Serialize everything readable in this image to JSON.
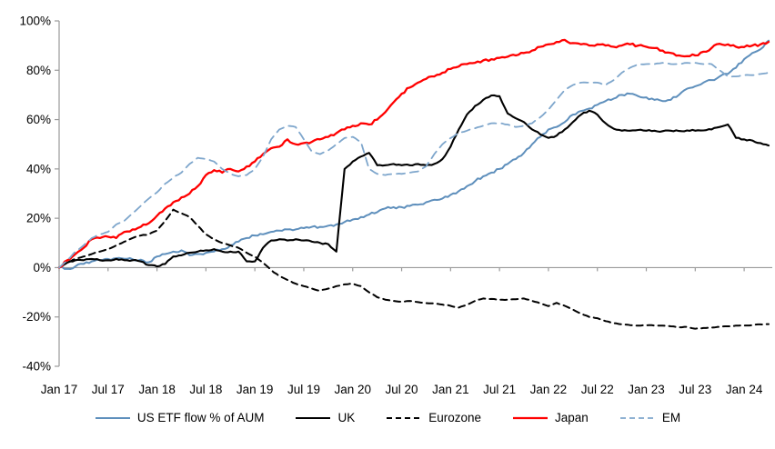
{
  "chart_data": {
    "type": "line",
    "title": "",
    "xlabel": "",
    "ylabel": "",
    "ylim": [
      -40,
      100
    ],
    "grid": false,
    "legend_position": "bottom",
    "x_unit": "months from Jan 2017 (monthly samples)",
    "x_tick_labels": [
      "Jan 17",
      "Jul 17",
      "Jan 18",
      "Jul 18",
      "Jan 19",
      "Jul 19",
      "Jan 20",
      "Jul 20",
      "Jan 21",
      "Jul 21",
      "Jan 22",
      "Jul 22",
      "Jan 23",
      "Jul 23",
      "Jan 24"
    ],
    "y_tick_labels": [
      "100%",
      "80%",
      "60%",
      "40%",
      "20%",
      "0%",
      "-20%",
      "-40%"
    ],
    "axis_color": "#9a9a9a",
    "series": [
      {
        "name": "US ETF flow % of AUM",
        "color": "#5e8fbc",
        "style": "solid",
        "values": [
          0,
          -0.5,
          0.5,
          1.5,
          2.5,
          3,
          3.5,
          3.8,
          3.6,
          3.4,
          3.2,
          2.2,
          4.5,
          5.5,
          6.5,
          7,
          5,
          5.5,
          6,
          6.5,
          7.5,
          9,
          10.5,
          12,
          13,
          13.5,
          14.5,
          15,
          15.5,
          15.5,
          16,
          16.5,
          16.5,
          17,
          17.5,
          18.5,
          19.5,
          20.5,
          21.5,
          22.5,
          24,
          24.5,
          24.5,
          25,
          25.5,
          26.5,
          27.5,
          28,
          29.5,
          31,
          33,
          35,
          37,
          38.5,
          40,
          42,
          44,
          46.5,
          50,
          53,
          56,
          57,
          59,
          62,
          63.5,
          64.5,
          66,
          67.5,
          68.5,
          70,
          70.5,
          69.5,
          69,
          68,
          67.5,
          68,
          70,
          72.5,
          73.5,
          75,
          76,
          77.5,
          78.5,
          81,
          84.5,
          87,
          88.5,
          92
        ]
      },
      {
        "name": "UK",
        "color": "#000000",
        "style": "solid",
        "values": [
          0,
          2,
          3,
          3,
          3.5,
          3,
          3,
          3.5,
          3,
          3,
          2.5,
          1,
          0.5,
          1.5,
          4.5,
          5,
          6,
          6.5,
          7,
          7.5,
          6.5,
          6.5,
          6.5,
          2.5,
          2.5,
          8,
          11,
          11.5,
          11,
          11.5,
          11,
          10.5,
          10,
          9.5,
          6.5,
          40,
          43,
          45,
          46.5,
          41.5,
          41.5,
          42,
          41.5,
          41.5,
          42,
          41.5,
          42,
          44,
          49,
          56,
          62,
          65.5,
          68,
          69.8,
          69.5,
          62.5,
          60.5,
          59,
          56,
          54,
          52.6,
          53.5,
          56,
          59,
          62,
          63.6,
          62,
          58.5,
          56.3,
          55.5,
          55.5,
          55.8,
          55.5,
          55.5,
          55.3,
          55.5,
          55.4,
          55.6,
          55.5,
          55.6,
          56,
          57,
          58,
          52.6,
          52,
          51.5,
          50.5,
          49.5
        ]
      },
      {
        "name": "Eurozone",
        "color": "#000000",
        "style": "dashed",
        "values": [
          0,
          2,
          3.5,
          4.5,
          5.5,
          6.5,
          7.5,
          9,
          10.5,
          12,
          13,
          13.5,
          15,
          19,
          23.5,
          22,
          20.5,
          17,
          13.5,
          11.5,
          10,
          9,
          8,
          6,
          4.5,
          2,
          -1,
          -3.5,
          -5,
          -6.5,
          -7.5,
          -8.5,
          -9.4,
          -8.5,
          -7.5,
          -6.8,
          -6.5,
          -7.5,
          -10,
          -12,
          -13,
          -13.5,
          -13.8,
          -13.5,
          -14,
          -14.4,
          -14.5,
          -15,
          -15.5,
          -16.2,
          -15,
          -13.5,
          -12.5,
          -12.7,
          -13,
          -13,
          -12.8,
          -12.5,
          -13.5,
          -14.5,
          -15.6,
          -14.3,
          -15.5,
          -17,
          -18.6,
          -20,
          -20.5,
          -21.7,
          -22.5,
          -23,
          -23.3,
          -23.5,
          -23.4,
          -23.5,
          -23.5,
          -23.8,
          -24.2,
          -24,
          -24.8,
          -24.5,
          -24.3,
          -24,
          -23.8,
          -23.5,
          -23.5,
          -23.3,
          -23,
          -22.9
        ]
      },
      {
        "name": "Japan",
        "color": "#ff0000",
        "style": "solid",
        "values": [
          0,
          3,
          5.5,
          8,
          11.5,
          12,
          12.5,
          12,
          14.5,
          15.5,
          16.5,
          18,
          21,
          24,
          26.5,
          28.5,
          30,
          33,
          37.5,
          39.5,
          38.5,
          40,
          39,
          41,
          43,
          46,
          48.4,
          49,
          52,
          50,
          50.5,
          51,
          52,
          53,
          54.5,
          56,
          57.5,
          58.5,
          58,
          60,
          63,
          67,
          70.5,
          73,
          75,
          76.5,
          77.5,
          79,
          80.5,
          81.5,
          82.5,
          83,
          84,
          84.5,
          85,
          85.5,
          86,
          87,
          88,
          89.5,
          90.5,
          91.5,
          92.3,
          91,
          90.5,
          90,
          90.5,
          90,
          89.5,
          90,
          90.5,
          90,
          89.5,
          89,
          88,
          87,
          86,
          85.7,
          86,
          87.5,
          89,
          90.7,
          90.5,
          89.5,
          89.4,
          90,
          90.5,
          91.5
        ]
      },
      {
        "name": "EM",
        "color": "#7ea6cc",
        "style": "dashed",
        "values": [
          0,
          3,
          6.5,
          9,
          12,
          13.5,
          14.5,
          17.5,
          19,
          22,
          25,
          28,
          30.5,
          34,
          36.5,
          38.5,
          42,
          44.5,
          44,
          43,
          40,
          38,
          37,
          37.5,
          40,
          45,
          52,
          56,
          57.5,
          57,
          52,
          47,
          46,
          47.5,
          50,
          52.5,
          53,
          51,
          40,
          38,
          37.5,
          38,
          38,
          38.5,
          39,
          41,
          46,
          50,
          52.5,
          54.5,
          55.5,
          56.5,
          57.5,
          58.5,
          58.5,
          58,
          57,
          57.5,
          58.5,
          61,
          64,
          68,
          72,
          74,
          75,
          75,
          75,
          74,
          76,
          79,
          81,
          82.5,
          82.5,
          82.5,
          83,
          82.5,
          82.5,
          83,
          83,
          82.5,
          82.5,
          80,
          77.5,
          77.5,
          78,
          78,
          78.5,
          79
        ]
      }
    ]
  }
}
